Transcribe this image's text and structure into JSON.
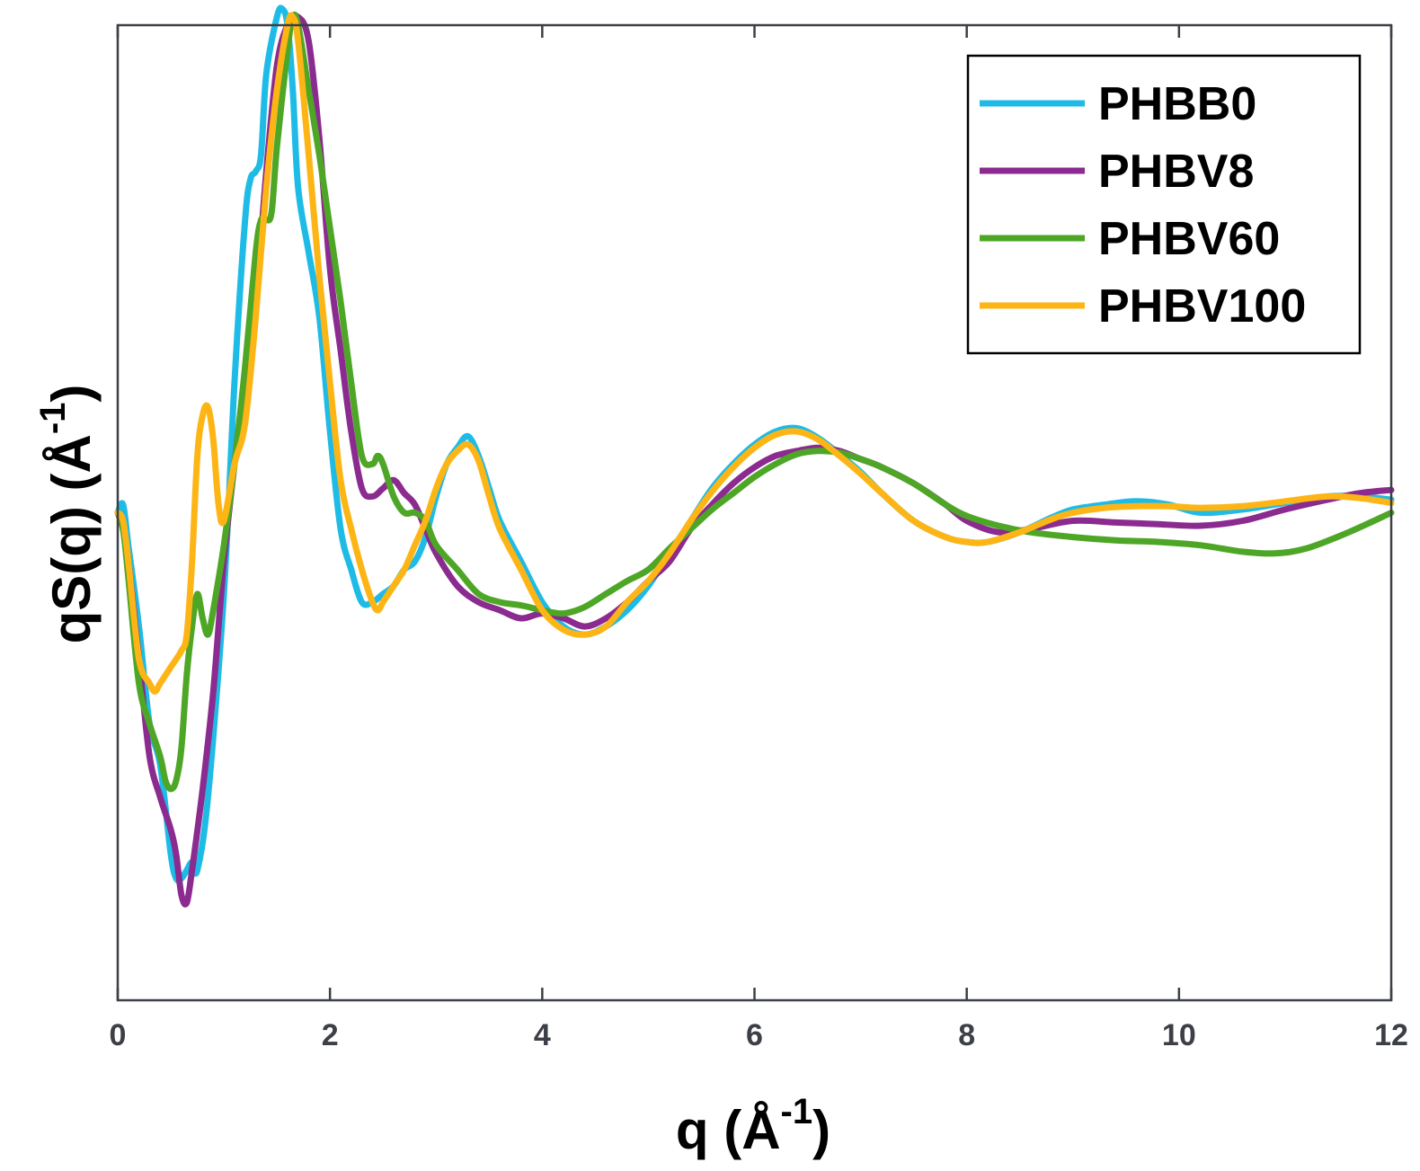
{
  "chart_data": {
    "type": "line",
    "xlabel": "q (Å",
    "xlabel_exp": "-1",
    "xlabel_close": ")",
    "ylabel": "qS(q) (Å",
    "ylabel_exp": "-1",
    "ylabel_close": ")",
    "xlim": [
      0,
      12
    ],
    "ylim": [
      -3.0,
      3.0
    ],
    "xticks": [
      "0",
      "2",
      "4",
      "6",
      "8",
      "10",
      "12"
    ],
    "yticks_shown": false,
    "grid": false,
    "legend_position": "top-right",
    "series": [
      {
        "name": "PHBB0",
        "color": "#1ebbe6",
        "points": [
          [
            0,
            0
          ],
          [
            0.05,
            0.05
          ],
          [
            0.1,
            -0.2
          ],
          [
            0.2,
            -0.7
          ],
          [
            0.3,
            -1.3
          ],
          [
            0.4,
            -1.55
          ],
          [
            0.5,
            -2.1
          ],
          [
            0.55,
            -2.25
          ],
          [
            0.6,
            -2.25
          ],
          [
            0.65,
            -2.2
          ],
          [
            0.7,
            -2.15
          ],
          [
            0.75,
            -2.2
          ],
          [
            0.85,
            -1.75
          ],
          [
            1.0,
            -0.5
          ],
          [
            1.1,
            0.8
          ],
          [
            1.2,
            1.8
          ],
          [
            1.25,
            2.05
          ],
          [
            1.3,
            2.1
          ],
          [
            1.35,
            2.2
          ],
          [
            1.4,
            2.7
          ],
          [
            1.5,
            3.05
          ],
          [
            1.55,
            3.1
          ],
          [
            1.6,
            3.0
          ],
          [
            1.65,
            2.6
          ],
          [
            1.7,
            2.0
          ],
          [
            1.8,
            1.6
          ],
          [
            1.9,
            1.2
          ],
          [
            2.0,
            0.5
          ],
          [
            2.1,
            -0.1
          ],
          [
            2.2,
            -0.35
          ],
          [
            2.3,
            -0.55
          ],
          [
            2.4,
            -0.55
          ],
          [
            2.5,
            -0.5
          ],
          [
            2.6,
            -0.45
          ],
          [
            2.7,
            -0.35
          ],
          [
            2.8,
            -0.3
          ],
          [
            2.9,
            -0.15
          ],
          [
            3.0,
            0.1
          ],
          [
            3.1,
            0.3
          ],
          [
            3.2,
            0.4
          ],
          [
            3.3,
            0.47
          ],
          [
            3.4,
            0.35
          ],
          [
            3.5,
            0.15
          ],
          [
            3.6,
            -0.05
          ],
          [
            3.8,
            -0.3
          ],
          [
            4.0,
            -0.55
          ],
          [
            4.2,
            -0.7
          ],
          [
            4.4,
            -0.75
          ],
          [
            4.6,
            -0.7
          ],
          [
            4.8,
            -0.6
          ],
          [
            5.0,
            -0.45
          ],
          [
            5.2,
            -0.25
          ],
          [
            5.4,
            -0.05
          ],
          [
            5.6,
            0.15
          ],
          [
            5.8,
            0.3
          ],
          [
            6.0,
            0.42
          ],
          [
            6.2,
            0.5
          ],
          [
            6.4,
            0.52
          ],
          [
            6.6,
            0.46
          ],
          [
            6.8,
            0.36
          ],
          [
            7.0,
            0.25
          ],
          [
            7.2,
            0.12
          ],
          [
            7.5,
            -0.05
          ],
          [
            7.8,
            -0.15
          ],
          [
            8.0,
            -0.18
          ],
          [
            8.2,
            -0.18
          ],
          [
            8.5,
            -0.12
          ],
          [
            8.8,
            -0.03
          ],
          [
            9.0,
            0.02
          ],
          [
            9.3,
            0.05
          ],
          [
            9.6,
            0.07
          ],
          [
            9.9,
            0.05
          ],
          [
            10.2,
            0.0
          ],
          [
            10.6,
            0.02
          ],
          [
            11.0,
            0.06
          ],
          [
            11.4,
            0.1
          ],
          [
            11.7,
            0.1
          ],
          [
            12.0,
            0.08
          ]
        ]
      },
      {
        "name": "PHBV8",
        "color": "#8b2a8f",
        "points": [
          [
            0,
            0
          ],
          [
            0.05,
            -0.1
          ],
          [
            0.1,
            -0.3
          ],
          [
            0.2,
            -0.9
          ],
          [
            0.3,
            -1.5
          ],
          [
            0.4,
            -1.75
          ],
          [
            0.5,
            -1.95
          ],
          [
            0.55,
            -2.1
          ],
          [
            0.6,
            -2.35
          ],
          [
            0.65,
            -2.4
          ],
          [
            0.7,
            -2.2
          ],
          [
            0.8,
            -1.7
          ],
          [
            0.9,
            -1.1
          ],
          [
            1.0,
            -0.3
          ],
          [
            1.1,
            0.3
          ],
          [
            1.2,
            0.85
          ],
          [
            1.3,
            1.3
          ],
          [
            1.4,
            2.1
          ],
          [
            1.5,
            2.75
          ],
          [
            1.6,
            3.0
          ],
          [
            1.7,
            3.05
          ],
          [
            1.8,
            2.9
          ],
          [
            1.9,
            2.3
          ],
          [
            2.0,
            1.5
          ],
          [
            2.1,
            1.0
          ],
          [
            2.2,
            0.5
          ],
          [
            2.3,
            0.15
          ],
          [
            2.4,
            0.1
          ],
          [
            2.5,
            0.15
          ],
          [
            2.6,
            0.2
          ],
          [
            2.7,
            0.12
          ],
          [
            2.8,
            0.05
          ],
          [
            2.9,
            -0.1
          ],
          [
            3.0,
            -0.25
          ],
          [
            3.2,
            -0.45
          ],
          [
            3.4,
            -0.55
          ],
          [
            3.6,
            -0.6
          ],
          [
            3.8,
            -0.65
          ],
          [
            4.0,
            -0.62
          ],
          [
            4.2,
            -0.65
          ],
          [
            4.4,
            -0.7
          ],
          [
            4.6,
            -0.65
          ],
          [
            4.8,
            -0.55
          ],
          [
            5.0,
            -0.42
          ],
          [
            5.2,
            -0.3
          ],
          [
            5.4,
            -0.1
          ],
          [
            5.6,
            0.05
          ],
          [
            5.8,
            0.18
          ],
          [
            6.0,
            0.28
          ],
          [
            6.2,
            0.35
          ],
          [
            6.4,
            0.38
          ],
          [
            6.6,
            0.4
          ],
          [
            6.8,
            0.38
          ],
          [
            7.0,
            0.33
          ],
          [
            7.2,
            0.28
          ],
          [
            7.5,
            0.18
          ],
          [
            7.8,
            0.05
          ],
          [
            8.0,
            -0.05
          ],
          [
            8.3,
            -0.12
          ],
          [
            8.6,
            -0.1
          ],
          [
            9.0,
            -0.05
          ],
          [
            9.4,
            -0.06
          ],
          [
            9.8,
            -0.07
          ],
          [
            10.2,
            -0.08
          ],
          [
            10.6,
            -0.05
          ],
          [
            11.0,
            0.02
          ],
          [
            11.4,
            0.08
          ],
          [
            11.7,
            0.12
          ],
          [
            12.0,
            0.14
          ]
        ]
      },
      {
        "name": "PHBV60",
        "color": "#4ea626",
        "points": [
          [
            0,
            0
          ],
          [
            0.05,
            -0.1
          ],
          [
            0.1,
            -0.4
          ],
          [
            0.2,
            -1.05
          ],
          [
            0.3,
            -1.3
          ],
          [
            0.4,
            -1.5
          ],
          [
            0.45,
            -1.65
          ],
          [
            0.5,
            -1.7
          ],
          [
            0.55,
            -1.65
          ],
          [
            0.6,
            -1.45
          ],
          [
            0.65,
            -1.0
          ],
          [
            0.7,
            -0.7
          ],
          [
            0.75,
            -0.5
          ],
          [
            0.8,
            -0.65
          ],
          [
            0.85,
            -0.75
          ],
          [
            0.9,
            -0.6
          ],
          [
            1.0,
            -0.2
          ],
          [
            1.1,
            0.3
          ],
          [
            1.2,
            0.9
          ],
          [
            1.3,
            1.6
          ],
          [
            1.35,
            1.8
          ],
          [
            1.4,
            1.8
          ],
          [
            1.45,
            1.85
          ],
          [
            1.5,
            2.25
          ],
          [
            1.6,
            2.85
          ],
          [
            1.65,
            3.05
          ],
          [
            1.7,
            3.0
          ],
          [
            1.8,
            2.6
          ],
          [
            1.9,
            2.2
          ],
          [
            2.0,
            1.75
          ],
          [
            2.1,
            1.3
          ],
          [
            2.2,
            0.8
          ],
          [
            2.3,
            0.35
          ],
          [
            2.4,
            0.3
          ],
          [
            2.45,
            0.35
          ],
          [
            2.5,
            0.3
          ],
          [
            2.6,
            0.1
          ],
          [
            2.7,
            0.0
          ],
          [
            2.8,
            0.0
          ],
          [
            2.9,
            -0.05
          ],
          [
            3.0,
            -0.2
          ],
          [
            3.2,
            -0.35
          ],
          [
            3.4,
            -0.5
          ],
          [
            3.6,
            -0.55
          ],
          [
            3.8,
            -0.57
          ],
          [
            4.0,
            -0.6
          ],
          [
            4.2,
            -0.62
          ],
          [
            4.4,
            -0.58
          ],
          [
            4.6,
            -0.5
          ],
          [
            4.8,
            -0.42
          ],
          [
            5.0,
            -0.35
          ],
          [
            5.2,
            -0.22
          ],
          [
            5.4,
            -0.1
          ],
          [
            5.6,
            0.02
          ],
          [
            5.8,
            0.12
          ],
          [
            6.0,
            0.22
          ],
          [
            6.2,
            0.3
          ],
          [
            6.4,
            0.36
          ],
          [
            6.6,
            0.38
          ],
          [
            6.8,
            0.37
          ],
          [
            7.0,
            0.33
          ],
          [
            7.2,
            0.28
          ],
          [
            7.5,
            0.18
          ],
          [
            7.8,
            0.05
          ],
          [
            8.0,
            -0.02
          ],
          [
            8.3,
            -0.08
          ],
          [
            8.6,
            -0.12
          ],
          [
            9.0,
            -0.15
          ],
          [
            9.4,
            -0.17
          ],
          [
            9.8,
            -0.18
          ],
          [
            10.2,
            -0.2
          ],
          [
            10.6,
            -0.24
          ],
          [
            10.9,
            -0.25
          ],
          [
            11.2,
            -0.22
          ],
          [
            11.6,
            -0.12
          ],
          [
            12.0,
            0.0
          ]
        ]
      },
      {
        "name": "PHBV100",
        "color": "#fdb515",
        "points": [
          [
            0,
            0
          ],
          [
            0.05,
            -0.05
          ],
          [
            0.1,
            -0.3
          ],
          [
            0.2,
            -0.9
          ],
          [
            0.3,
            -1.05
          ],
          [
            0.35,
            -1.1
          ],
          [
            0.4,
            -1.05
          ],
          [
            0.5,
            -0.95
          ],
          [
            0.6,
            -0.85
          ],
          [
            0.65,
            -0.75
          ],
          [
            0.7,
            -0.3
          ],
          [
            0.75,
            0.35
          ],
          [
            0.8,
            0.6
          ],
          [
            0.85,
            0.65
          ],
          [
            0.9,
            0.45
          ],
          [
            0.95,
            0.05
          ],
          [
            1.0,
            -0.05
          ],
          [
            1.1,
            0.3
          ],
          [
            1.2,
            0.55
          ],
          [
            1.3,
            1.2
          ],
          [
            1.4,
            2.0
          ],
          [
            1.5,
            2.6
          ],
          [
            1.6,
            3.0
          ],
          [
            1.65,
            3.05
          ],
          [
            1.7,
            2.9
          ],
          [
            1.8,
            2.2
          ],
          [
            1.9,
            1.45
          ],
          [
            2.0,
            0.8
          ],
          [
            2.1,
            0.2
          ],
          [
            2.2,
            -0.1
          ],
          [
            2.3,
            -0.35
          ],
          [
            2.4,
            -0.55
          ],
          [
            2.45,
            -0.6
          ],
          [
            2.5,
            -0.55
          ],
          [
            2.6,
            -0.45
          ],
          [
            2.7,
            -0.35
          ],
          [
            2.8,
            -0.2
          ],
          [
            2.9,
            -0.05
          ],
          [
            3.0,
            0.15
          ],
          [
            3.1,
            0.3
          ],
          [
            3.2,
            0.38
          ],
          [
            3.3,
            0.42
          ],
          [
            3.4,
            0.32
          ],
          [
            3.5,
            0.1
          ],
          [
            3.6,
            -0.1
          ],
          [
            3.8,
            -0.35
          ],
          [
            4.0,
            -0.6
          ],
          [
            4.2,
            -0.72
          ],
          [
            4.4,
            -0.75
          ],
          [
            4.6,
            -0.7
          ],
          [
            4.8,
            -0.55
          ],
          [
            5.0,
            -0.42
          ],
          [
            5.2,
            -0.25
          ],
          [
            5.4,
            -0.05
          ],
          [
            5.6,
            0.13
          ],
          [
            5.8,
            0.28
          ],
          [
            6.0,
            0.4
          ],
          [
            6.2,
            0.48
          ],
          [
            6.4,
            0.5
          ],
          [
            6.6,
            0.45
          ],
          [
            6.8,
            0.35
          ],
          [
            7.0,
            0.24
          ],
          [
            7.2,
            0.12
          ],
          [
            7.5,
            -0.05
          ],
          [
            7.8,
            -0.15
          ],
          [
            8.0,
            -0.18
          ],
          [
            8.2,
            -0.18
          ],
          [
            8.5,
            -0.12
          ],
          [
            8.8,
            -0.04
          ],
          [
            9.0,
            0.0
          ],
          [
            9.3,
            0.03
          ],
          [
            9.6,
            0.04
          ],
          [
            9.9,
            0.04
          ],
          [
            10.2,
            0.03
          ],
          [
            10.6,
            0.04
          ],
          [
            11.0,
            0.07
          ],
          [
            11.4,
            0.1
          ],
          [
            11.7,
            0.09
          ],
          [
            12.0,
            0.06
          ]
        ]
      }
    ]
  }
}
